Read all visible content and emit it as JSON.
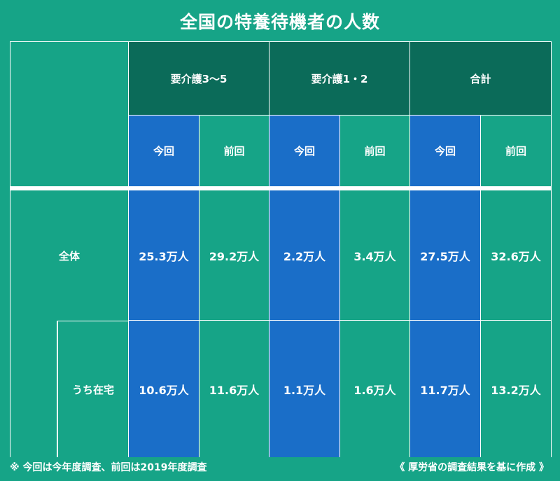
{
  "title": "全国の特養待機者の人数",
  "groups": [
    "要介護3〜5",
    "要介護1・2",
    "合計"
  ],
  "sub_headers": [
    "今回",
    "前回",
    "今回",
    "前回",
    "今回",
    "前回"
  ],
  "rows": [
    {
      "label": "全体",
      "values": [
        "25.3万人",
        "29.2万人",
        "2.2万人",
        "3.4万人",
        "27.5万人",
        "32.6万人"
      ]
    },
    {
      "label": "うち在宅",
      "values": [
        "10.6万人",
        "11.6万人",
        "1.1万人",
        "1.6万人",
        "11.7万人",
        "13.2万人"
      ]
    }
  ],
  "footnote": "※ 今回は今年度調査、前回は2019年度調査",
  "source": "《 厚労省の調査結果を基に作成 》",
  "colors": {
    "background": "#16a487",
    "group_header": "#0b6b59",
    "current": "#1a6ec8"
  },
  "chart_data": {
    "type": "table",
    "title": "全国の特養待機者の人数",
    "columns": [
      {
        "group": "要介護3〜5",
        "period": "今回"
      },
      {
        "group": "要介護3〜5",
        "period": "前回"
      },
      {
        "group": "要介護1・2",
        "period": "今回"
      },
      {
        "group": "要介護1・2",
        "period": "前回"
      },
      {
        "group": "合計",
        "period": "今回"
      },
      {
        "group": "合計",
        "period": "前回"
      }
    ],
    "rows": [
      {
        "label": "全体",
        "values": [
          25.3,
          29.2,
          2.2,
          3.4,
          27.5,
          32.6
        ]
      },
      {
        "label": "うち在宅",
        "values": [
          10.6,
          11.6,
          1.1,
          1.6,
          11.7,
          13.2
        ]
      }
    ],
    "unit": "万人"
  }
}
